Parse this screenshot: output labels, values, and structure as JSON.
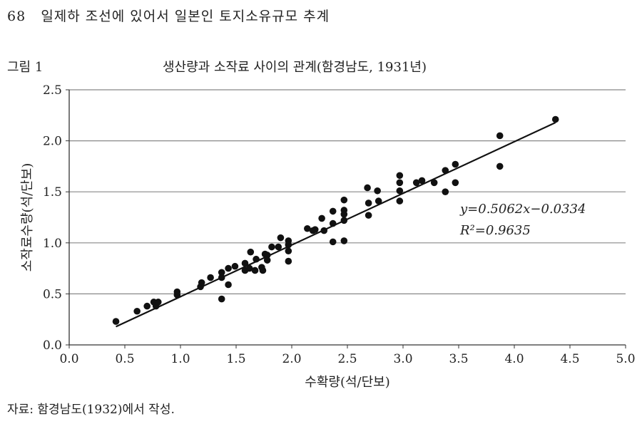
{
  "header": {
    "page_number": "68",
    "running_title": "일제하 조선에 있어서 일본인 토지소유규모 추계"
  },
  "figure": {
    "label": "그림 1",
    "source_note": "자료: 함경남도(1932)에서 작성."
  },
  "chart_data": {
    "type": "scatter",
    "title": "생산량과 소작료 사이의 관계(함경남도, 1931년)",
    "xlabel": "수확량(석/단보)",
    "ylabel": "소작료수량(석/단보)",
    "xlim": [
      0,
      5
    ],
    "ylim": [
      0,
      2.5
    ],
    "xticks": [
      "0.0",
      "0.5",
      "1.0",
      "1.5",
      "2.0",
      "2.5",
      "3.0",
      "3.5",
      "4.0",
      "4.5",
      "5.0"
    ],
    "yticks": [
      "0.0",
      "0.5",
      "1.0",
      "1.5",
      "2.0",
      "2.5"
    ],
    "grid": "horizontal",
    "trendline": {
      "slope": 0.5062,
      "intercept": -0.0334,
      "x_range": [
        0.42,
        4.37
      ]
    },
    "equation": "y=0.5062x−0.0334",
    "r_squared": "R²=0.9635",
    "points": [
      [
        0.42,
        0.23
      ],
      [
        0.61,
        0.33
      ],
      [
        0.7,
        0.38
      ],
      [
        0.76,
        0.42
      ],
      [
        0.78,
        0.38
      ],
      [
        0.8,
        0.42
      ],
      [
        0.97,
        0.52
      ],
      [
        0.97,
        0.49
      ],
      [
        1.18,
        0.57
      ],
      [
        1.19,
        0.61
      ],
      [
        1.27,
        0.66
      ],
      [
        1.37,
        0.71
      ],
      [
        1.37,
        0.66
      ],
      [
        1.37,
        0.45
      ],
      [
        1.43,
        0.75
      ],
      [
        1.43,
        0.59
      ],
      [
        1.49,
        0.77
      ],
      [
        1.58,
        0.8
      ],
      [
        1.58,
        0.73
      ],
      [
        1.63,
        0.91
      ],
      [
        1.62,
        0.75
      ],
      [
        1.67,
        0.73
      ],
      [
        1.68,
        0.84
      ],
      [
        1.73,
        0.76
      ],
      [
        1.74,
        0.73
      ],
      [
        1.76,
        0.89
      ],
      [
        1.78,
        0.88
      ],
      [
        1.78,
        0.83
      ],
      [
        1.82,
        0.96
      ],
      [
        1.9,
        1.05
      ],
      [
        1.88,
        0.96
      ],
      [
        1.97,
        1.02
      ],
      [
        1.97,
        0.98
      ],
      [
        1.97,
        0.92
      ],
      [
        1.97,
        0.82
      ],
      [
        2.14,
        1.14
      ],
      [
        2.19,
        1.12
      ],
      [
        2.21,
        1.13
      ],
      [
        2.27,
        1.24
      ],
      [
        2.29,
        1.12
      ],
      [
        2.37,
        1.31
      ],
      [
        2.37,
        1.19
      ],
      [
        2.37,
        1.01
      ],
      [
        2.47,
        1.42
      ],
      [
        2.47,
        1.32
      ],
      [
        2.47,
        1.28
      ],
      [
        2.47,
        1.22
      ],
      [
        2.47,
        1.02
      ],
      [
        2.68,
        1.54
      ],
      [
        2.69,
        1.39
      ],
      [
        2.69,
        1.27
      ],
      [
        2.77,
        1.51
      ],
      [
        2.78,
        1.41
      ],
      [
        2.97,
        1.66
      ],
      [
        2.97,
        1.59
      ],
      [
        2.97,
        1.51
      ],
      [
        2.97,
        1.41
      ],
      [
        3.12,
        1.59
      ],
      [
        3.17,
        1.61
      ],
      [
        3.28,
        1.59
      ],
      [
        3.38,
        1.71
      ],
      [
        3.38,
        1.5
      ],
      [
        3.47,
        1.77
      ],
      [
        3.47,
        1.59
      ],
      [
        3.87,
        2.05
      ],
      [
        3.87,
        1.75
      ],
      [
        4.37,
        2.21
      ]
    ]
  }
}
